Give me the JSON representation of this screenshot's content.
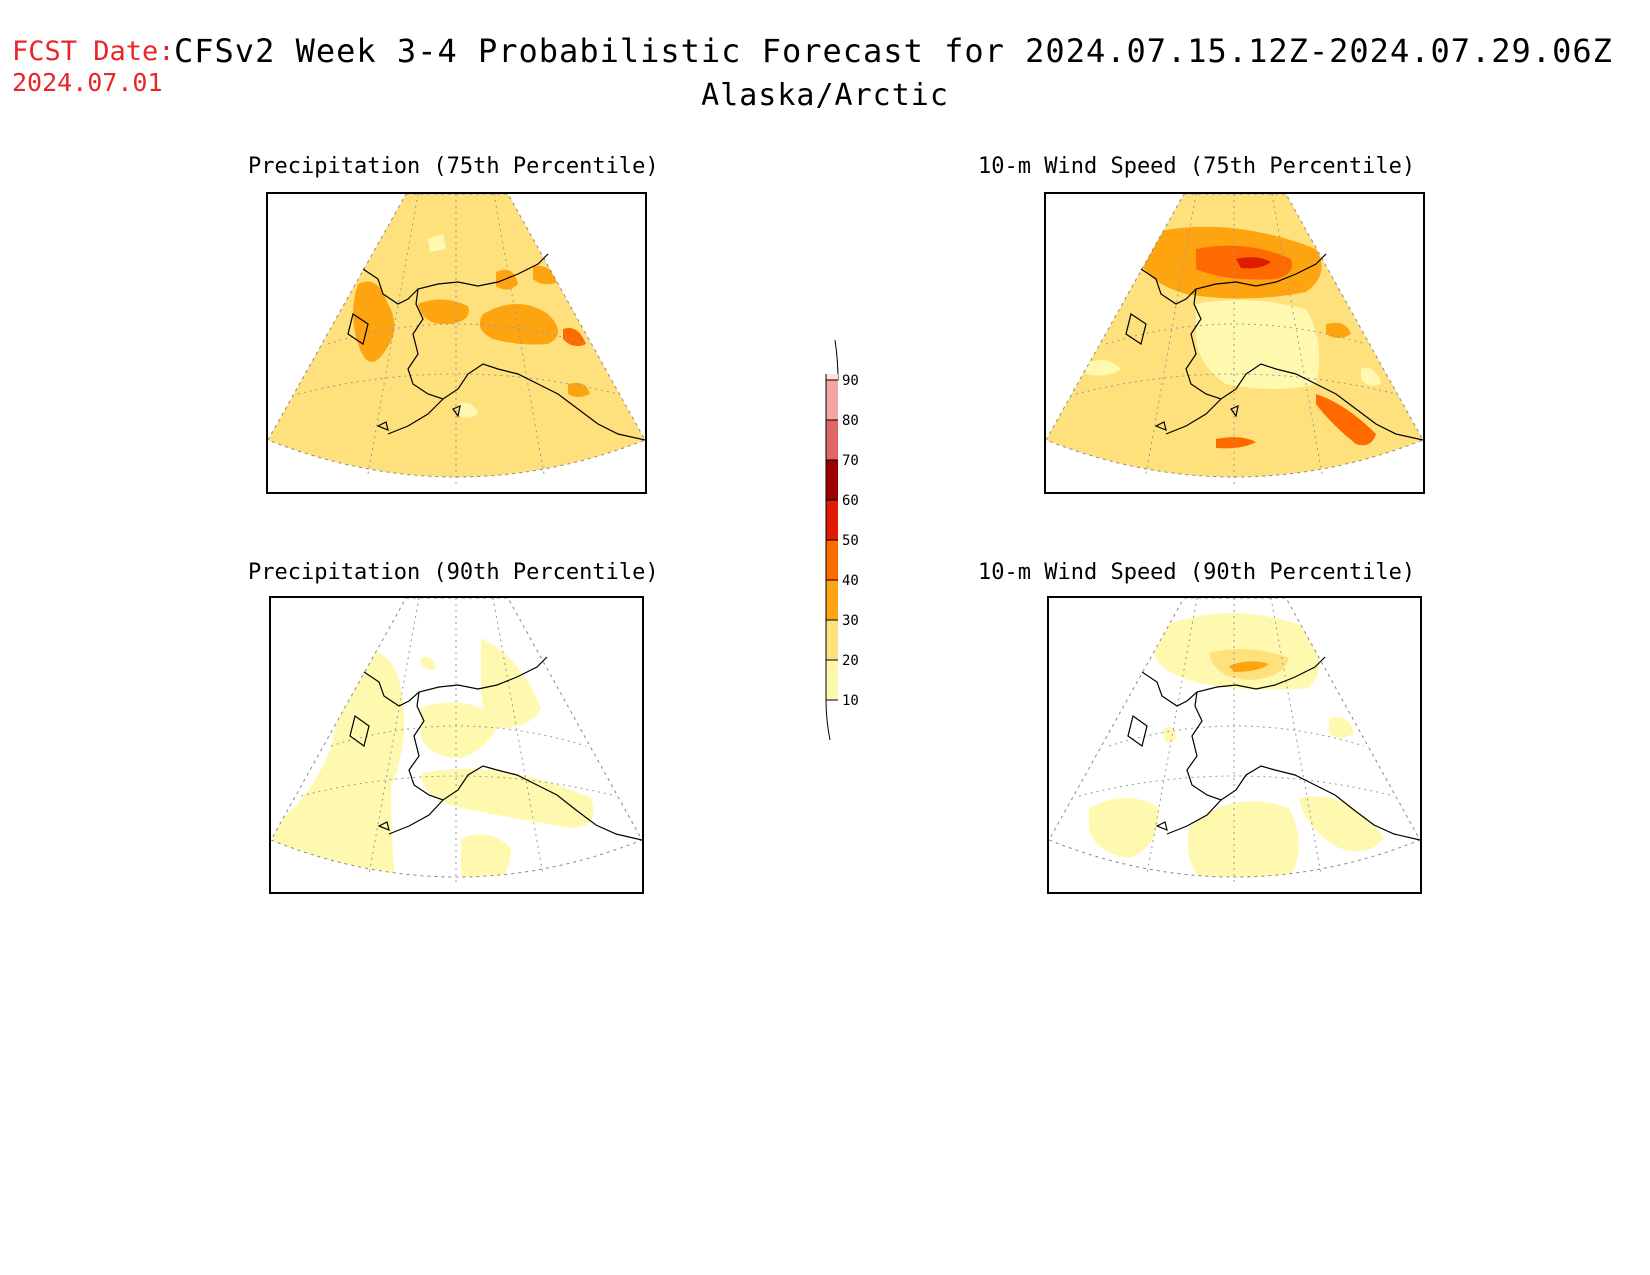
{
  "header": {
    "fcst_label": "FCST Date:",
    "fcst_date": "2024.07.01",
    "title": "CFSv2 Week 3-4 Probabilistic Forecast for 2024.07.15.12Z-2024.07.29.06Z",
    "region": "Alaska/Arctic"
  },
  "panels": [
    {
      "id": "precip-75",
      "title": "Precipitation (75th Percentile)"
    },
    {
      "id": "wind-75",
      "title": "10-m Wind Speed (75th Percentile)"
    },
    {
      "id": "precip-90",
      "title": "Precipitation (90th Percentile)"
    },
    {
      "id": "wind-90",
      "title": "10-m Wind Speed (90th Percentile)"
    }
  ],
  "colorbar": {
    "levels": [
      "10",
      "20",
      "30",
      "40",
      "50",
      "60",
      "70",
      "80",
      "90"
    ],
    "colors": {
      "10": "#fff9b0",
      "20": "#fee17c",
      "30": "#fea411",
      "40": "#ff6a00",
      "50": "#e01c00",
      "60": "#9c0000",
      "70": "#e06666",
      "80": "#f2a5a5",
      "90": "#fde2e2"
    }
  }
}
